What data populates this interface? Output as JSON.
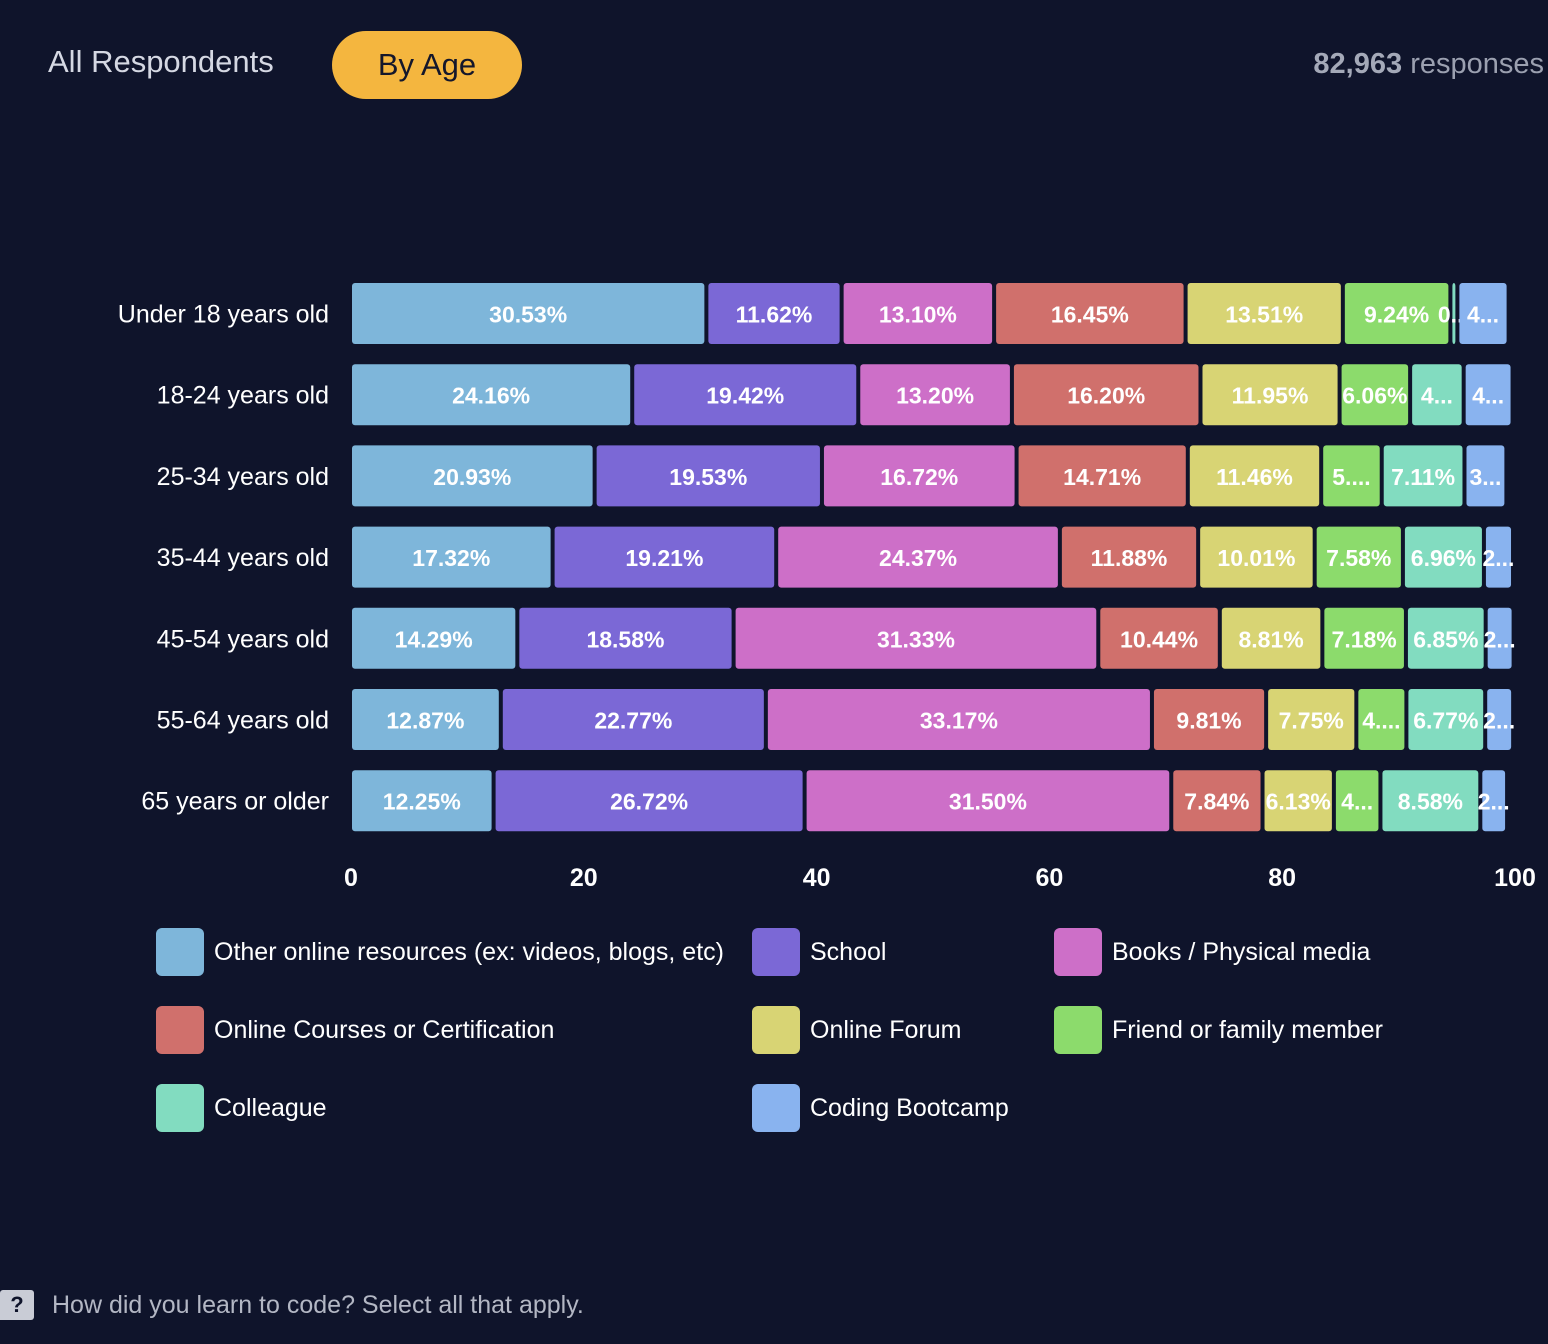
{
  "header": {
    "tab_all": "All Respondents",
    "tab_age": "By Age",
    "responses_count": "82,963",
    "responses_label": "responses"
  },
  "footer": {
    "question": "How did you learn to code? Select all that apply.",
    "help_glyph": "?"
  },
  "colors": {
    "background": "#0f142b",
    "accent": "#f4b63f"
  },
  "chart_data": {
    "type": "bar",
    "orientation": "horizontal",
    "stacked": true,
    "title": "How did you learn to code? Select all that apply.",
    "xlim": [
      0,
      100
    ],
    "xticks": [
      "0",
      "20",
      "40",
      "60",
      "80",
      "100"
    ],
    "categories": [
      "Under 18 years old",
      "18-24 years old",
      "25-34 years old",
      "35-44 years old",
      "45-54 years old",
      "55-64 years old",
      "65 years or older"
    ],
    "series": [
      {
        "name": "Other online resources (ex: videos, blogs, etc)",
        "color": "#7eb6da",
        "values": [
          30.53,
          24.16,
          20.93,
          17.32,
          14.29,
          12.87,
          12.25
        ],
        "labels": [
          "30.53%",
          "24.16%",
          "20.93%",
          "17.32%",
          "14.29%",
          "12.87%",
          "12.25%"
        ]
      },
      {
        "name": "School",
        "color": "#7b68d6",
        "values": [
          11.62,
          19.42,
          19.53,
          19.21,
          18.58,
          22.77,
          26.72
        ],
        "labels": [
          "11.62%",
          "19.42%",
          "19.53%",
          "19.21%",
          "18.58%",
          "22.77%",
          "26.72%"
        ]
      },
      {
        "name": "Books / Physical media",
        "color": "#cd6fc8",
        "values": [
          13.1,
          13.2,
          16.72,
          24.37,
          31.33,
          33.17,
          31.5
        ],
        "labels": [
          "13.10%",
          "13.20%",
          "16.72%",
          "24.37%",
          "31.33%",
          "33.17%",
          "31.50%"
        ]
      },
      {
        "name": "Online Courses or Certification",
        "color": "#d0706c",
        "values": [
          16.45,
          16.2,
          14.71,
          11.88,
          10.44,
          9.81,
          7.84
        ],
        "labels": [
          "16.45%",
          "16.20%",
          "14.71%",
          "11.88%",
          "10.44%",
          "9.81%",
          "7.84%"
        ]
      },
      {
        "name": "Online Forum",
        "color": "#d8d474",
        "values": [
          13.51,
          11.95,
          11.46,
          10.01,
          8.81,
          7.75,
          6.13
        ],
        "labels": [
          "13.51%",
          "11.95%",
          "11.46%",
          "10.01%",
          "8.81%",
          "7.75%",
          "6.13%"
        ]
      },
      {
        "name": "Friend or family member",
        "color": "#8cdb6c",
        "values": [
          9.24,
          6.06,
          5.2,
          7.58,
          7.18,
          4.3,
          4.0
        ],
        "labels": [
          "9.24%",
          "6.06%",
          "5....",
          "7.58%",
          "7.18%",
          "4....",
          "4..."
        ]
      },
      {
        "name": "Colleague",
        "color": "#82dcc0",
        "values": [
          0.6,
          4.6,
          7.11,
          6.96,
          6.85,
          6.77,
          8.58
        ],
        "labels": [
          "0...",
          "4...",
          "7.11%",
          "6.96%",
          "6.85%",
          "6.77%",
          "8.58%"
        ]
      },
      {
        "name": "Coding Bootcamp",
        "color": "#89b3ef",
        "values": [
          4.4,
          4.2,
          3.6,
          2.5,
          2.4,
          2.4,
          2.3
        ],
        "labels": [
          "4...",
          "4...",
          "3...",
          "2...",
          "2...",
          "2...",
          "2..."
        ]
      }
    ]
  }
}
